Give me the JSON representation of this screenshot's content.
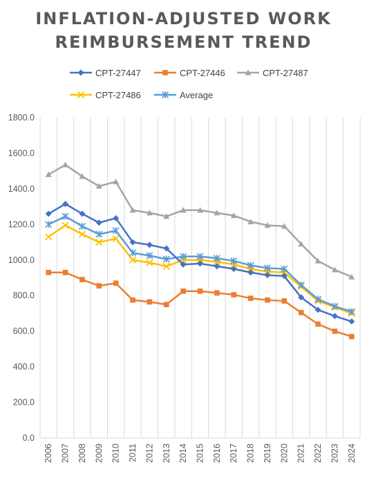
{
  "chart_data": {
    "type": "line",
    "title": "INFLATION-ADJUSTED WORK REIMBURSEMENT TREND",
    "title_lines": [
      "INFLATION-ADJUSTED WORK",
      "REIMBURSEMENT TREND"
    ],
    "xlabel": "",
    "ylabel": "",
    "ylim": [
      0,
      1800
    ],
    "y_ticks": [
      "0.0",
      "200.0",
      "400.0",
      "600.0",
      "800.0",
      "1000.0",
      "1200.0",
      "1400.0",
      "1600.0",
      "1800.0"
    ],
    "categories": [
      "2006",
      "2007",
      "2008",
      "2009",
      "2010",
      "2011",
      "2012",
      "2013",
      "2014",
      "2015",
      "2016",
      "2017",
      "2018",
      "2019",
      "2020",
      "2021",
      "2022",
      "2023",
      "2024"
    ],
    "grid": "vertical",
    "legend": "top",
    "series": [
      {
        "name": "CPT-27447",
        "color": "#4472C4",
        "marker": "diamond",
        "values": [
          1260,
          1315,
          1260,
          1210,
          1235,
          1100,
          1085,
          1065,
          975,
          980,
          965,
          950,
          930,
          915,
          910,
          790,
          720,
          685,
          655
        ]
      },
      {
        "name": "CPT-27446",
        "color": "#ED7D31",
        "marker": "square",
        "values": [
          930,
          930,
          890,
          855,
          870,
          775,
          765,
          750,
          825,
          825,
          815,
          805,
          785,
          775,
          770,
          705,
          640,
          600,
          570
        ]
      },
      {
        "name": "CPT-27487",
        "color": "#A5A5A5",
        "marker": "triangle",
        "values": [
          1480,
          1535,
          1470,
          1415,
          1440,
          1280,
          1265,
          1245,
          1280,
          1280,
          1265,
          1250,
          1215,
          1195,
          1190,
          1090,
          995,
          945,
          905
        ]
      },
      {
        "name": "CPT-27486",
        "color": "#FFC000",
        "marker": "x",
        "values": [
          1130,
          1195,
          1145,
          1100,
          1120,
          1000,
          985,
          965,
          1000,
          1000,
          990,
          975,
          950,
          935,
          930,
          850,
          770,
          735,
          700
        ]
      },
      {
        "name": "Average",
        "color": "#5B9BD5",
        "marker": "star",
        "values": [
          1200,
          1245,
          1190,
          1145,
          1165,
          1040,
          1025,
          1005,
          1020,
          1020,
          1010,
          995,
          970,
          955,
          950,
          860,
          780,
          740,
          710
        ]
      }
    ]
  }
}
